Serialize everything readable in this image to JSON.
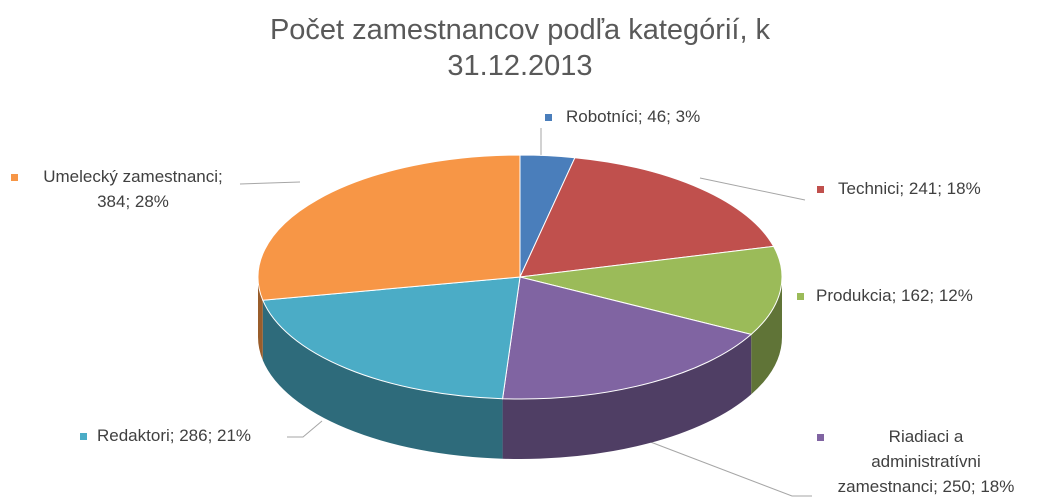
{
  "chart_data": {
    "type": "pie3d",
    "title": "Počet zamestnancov podľa kategórií, k 31.12.2013",
    "categories": [
      "Robotníci",
      "Technici",
      "Produkcia",
      "Riadiaci a administratívni zamestnanci",
      "Redaktori",
      "Umelecký zamestnanci"
    ],
    "values": [
      46,
      241,
      162,
      250,
      286,
      384
    ],
    "value_labels": [
      "Robotníci; 46; 3%",
      "Technici; 241; 18%",
      "Produkcia; 162; 12%",
      "Riadiaci a administratívni zamestnanci; 250; 18%",
      "Redaktori; 286; 21%",
      "Umelecký zamestnanci; 384; 28%"
    ],
    "colors": [
      "#4a7ebb",
      "#c0504d",
      "#9bbb59",
      "#8064a2",
      "#4bacc6",
      "#f79646"
    ]
  }
}
